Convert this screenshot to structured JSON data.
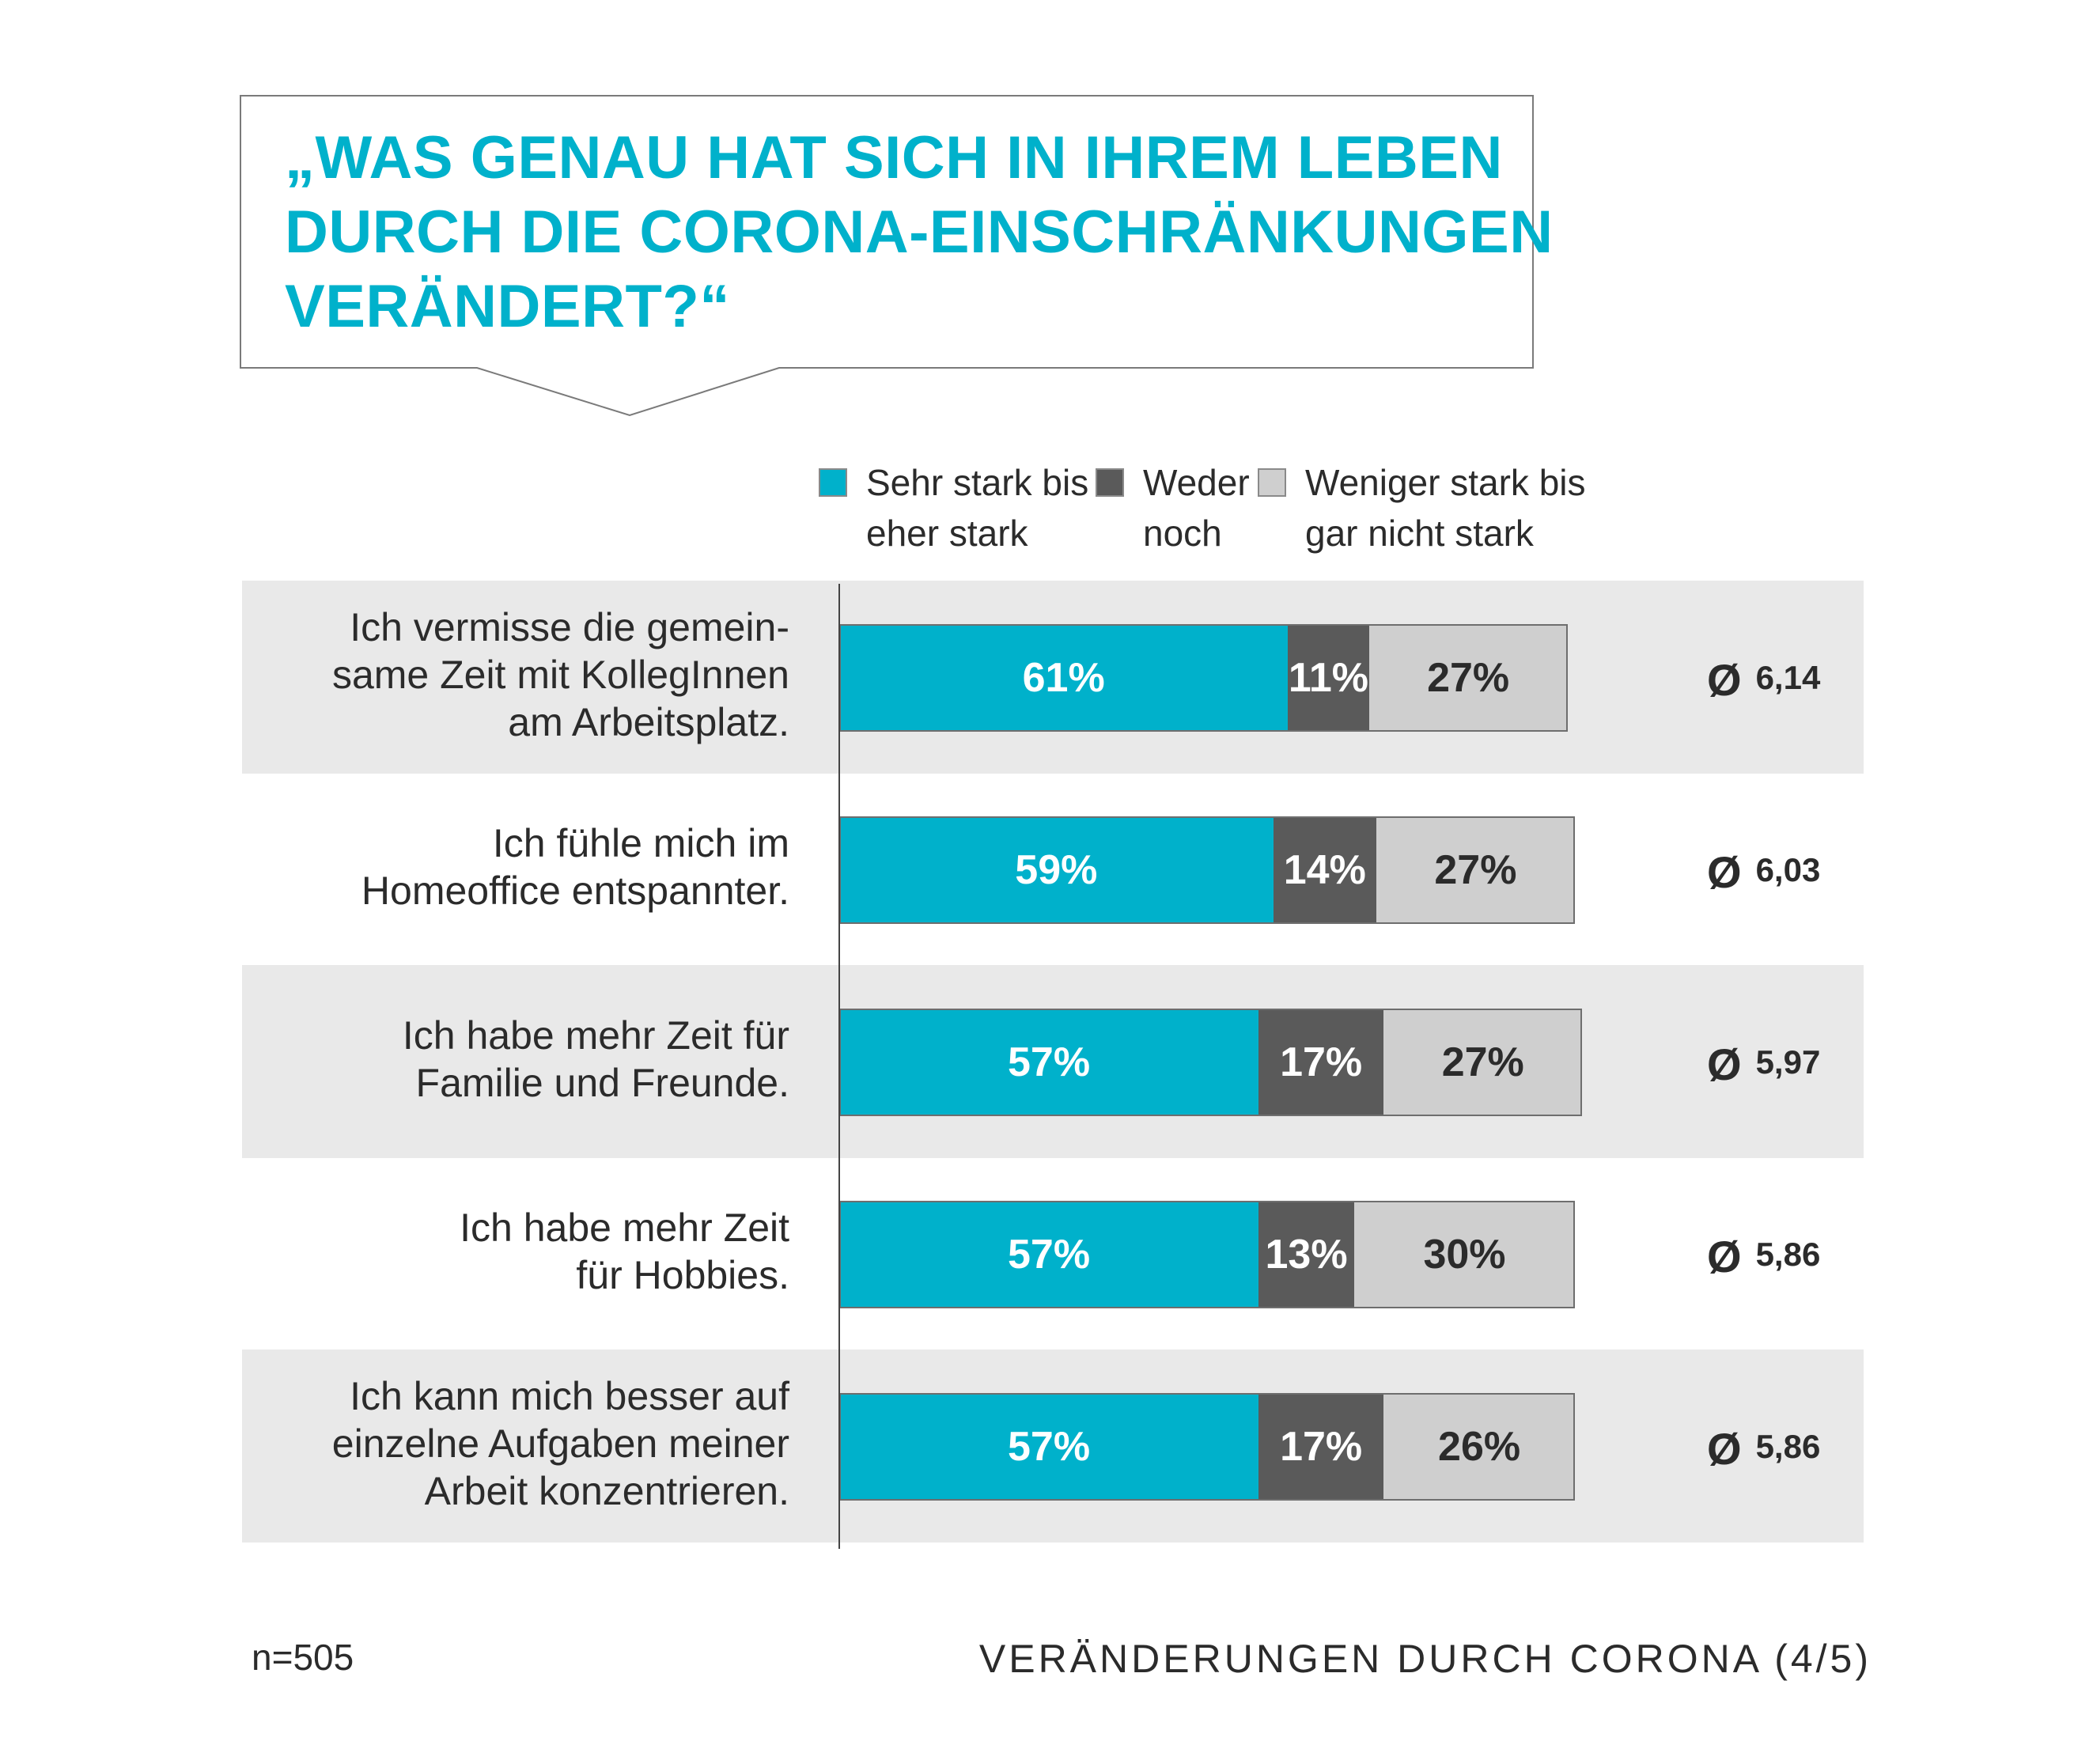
{
  "title_lines": [
    "„WAS GENAU HAT SICH IN IHREM LEBEN",
    "DURCH DIE CORONA-EINSCHRÄNKUNGEN",
    "VERÄNDERT?“"
  ],
  "legend": [
    {
      "line1": "Sehr stark bis",
      "line2": "eher stark",
      "color": "#00b1cb"
    },
    {
      "line1": "Weder",
      "line2": "noch",
      "color": "#5a5a5a"
    },
    {
      "line1": "Weniger stark bis",
      "line2": "gar nicht stark",
      "color": "#cfcfcf"
    }
  ],
  "average_symbol": "Ø",
  "chart_data": {
    "type": "bar",
    "orientation": "horizontal",
    "stacked": true,
    "unit": "%",
    "categories": [
      [
        "Ich vermisse die gemein-",
        "same Zeit mit KollegInnen",
        "am Arbeitsplatz."
      ],
      [
        "Ich fühle mich im",
        "Homeoffice entspannter."
      ],
      [
        "Ich habe mehr Zeit für",
        "Familie und Freunde."
      ],
      [
        "Ich habe mehr Zeit",
        "für Hobbies."
      ],
      [
        "Ich kann mich besser auf",
        "einzelne Aufgaben meiner",
        "Arbeit konzentrieren."
      ]
    ],
    "series": [
      {
        "name": "Sehr stark bis eher stark",
        "color": "#00b1cb",
        "label_color": "#ffffff",
        "values": [
          61,
          59,
          57,
          57,
          57
        ]
      },
      {
        "name": "Weder noch",
        "color": "#5a5a5a",
        "label_color": "#ffffff",
        "values": [
          11,
          14,
          17,
          13,
          17
        ]
      },
      {
        "name": "Weniger stark bis gar nicht stark",
        "color": "#cfcfcf",
        "label_color": "#2b2b2b",
        "values": [
          27,
          27,
          27,
          30,
          26
        ]
      }
    ],
    "averages": [
      "6,14",
      "6,03",
      "5,97",
      "5,86",
      "5,86"
    ],
    "xlim": [
      0,
      100
    ],
    "grid": false,
    "legend_position": "top"
  },
  "footer": {
    "n": "n=505",
    "title": "VERÄNDERUNGEN DURCH CORONA (4/5)"
  }
}
